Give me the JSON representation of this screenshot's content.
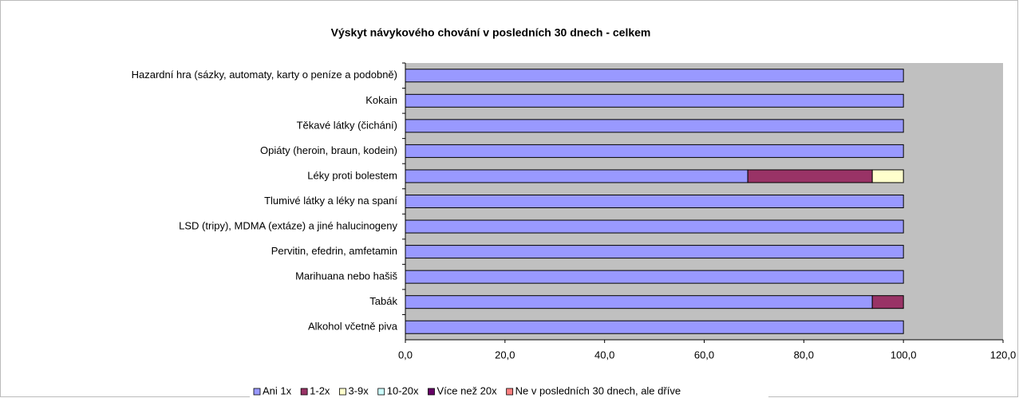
{
  "chart_data": {
    "type": "stacked-bar-horizontal",
    "title": "Výskyt návykového chování v posledních 30 dnech - celkem",
    "categories": [
      "Hazardní hra (sázky, automaty, karty o peníze a podobně)",
      "Kokain",
      "Těkavé látky (čichání)",
      "Opiáty (heroin, braun, kodein)",
      "Léky proti bolestem",
      "Tlumivé látky a léky na spaní",
      "LSD (tripy), MDMA (extáze) a jiné halucinogeny",
      "Pervitin, efedrin, amfetamin",
      "Marihuana nebo hašiš",
      "Tabák",
      "Alkohol včetně piva"
    ],
    "series": [
      {
        "name": "Ani 1x",
        "color": "#9999ff",
        "values": [
          100,
          100,
          100,
          100,
          68.75,
          100,
          100,
          100,
          100,
          93.75,
          100
        ]
      },
      {
        "name": "1-2x",
        "color": "#993366",
        "values": [
          0,
          0,
          0,
          0,
          25,
          0,
          0,
          0,
          0,
          6.25,
          0
        ]
      },
      {
        "name": "3-9x",
        "color": "#ffffcc",
        "values": [
          0,
          0,
          0,
          0,
          6.25,
          0,
          0,
          0,
          0,
          0,
          0
        ]
      },
      {
        "name": "10-20x",
        "color": "#ccffff",
        "values": [
          0,
          0,
          0,
          0,
          0,
          0,
          0,
          0,
          0,
          0,
          0
        ]
      },
      {
        "name": "Více než 20x",
        "color": "#660066",
        "values": [
          0,
          0,
          0,
          0,
          0,
          0,
          0,
          0,
          0,
          0,
          0
        ]
      },
      {
        "name": "Ne v posledních 30 dnech, ale dříve",
        "color": "#ff8080",
        "values": [
          0,
          0,
          0,
          0,
          0,
          0,
          0,
          0,
          0,
          0,
          0
        ]
      }
    ],
    "xlim": [
      0,
      120
    ],
    "xticks": [
      {
        "value": 0,
        "label": "0,0"
      },
      {
        "value": 20,
        "label": "20,0"
      },
      {
        "value": 40,
        "label": "40,0"
      },
      {
        "value": 60,
        "label": "60,0"
      },
      {
        "value": 80,
        "label": "80,0"
      },
      {
        "value": 100,
        "label": "100,0"
      },
      {
        "value": 120,
        "label": "120,0"
      }
    ],
    "plot_background": "#c0c0c0"
  }
}
